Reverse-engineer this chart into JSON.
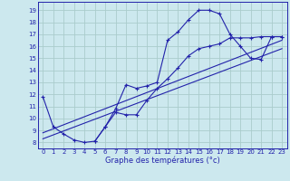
{
  "xlabel": "Graphe des températures (°c)",
  "background_color": "#cce8ee",
  "grid_color": "#aacccc",
  "line_color": "#2222aa",
  "x_ticks": [
    0,
    1,
    2,
    3,
    4,
    5,
    6,
    7,
    8,
    9,
    10,
    11,
    12,
    13,
    14,
    15,
    16,
    17,
    18,
    19,
    20,
    21,
    22,
    23
  ],
  "y_ticks": [
    8,
    9,
    10,
    11,
    12,
    13,
    14,
    15,
    16,
    17,
    18,
    19
  ],
  "ylim": [
    7.5,
    19.7
  ],
  "xlim": [
    -0.5,
    23.5
  ],
  "curve1_x": [
    0,
    1,
    2,
    3,
    4,
    5,
    6,
    7,
    8,
    9,
    10,
    11,
    12,
    13,
    14,
    15,
    16,
    17,
    18,
    19,
    20,
    21,
    22,
    23
  ],
  "curve1_y": [
    11.8,
    9.3,
    8.7,
    8.2,
    8.0,
    8.1,
    9.3,
    10.8,
    12.8,
    12.5,
    12.7,
    13.0,
    16.5,
    17.2,
    18.2,
    19.0,
    19.0,
    18.7,
    17.0,
    16.0,
    15.0,
    14.9,
    16.8,
    16.8
  ],
  "curve2_x": [
    5,
    6,
    7,
    8,
    9,
    10,
    11,
    12,
    13,
    14,
    15,
    16,
    17,
    18,
    19,
    20,
    21,
    22,
    23
  ],
  "curve2_y": [
    8.1,
    9.3,
    10.5,
    10.3,
    10.3,
    11.5,
    12.5,
    13.3,
    14.2,
    15.2,
    15.8,
    16.0,
    16.2,
    16.7,
    16.7,
    16.7,
    16.8,
    16.8,
    16.8
  ],
  "line1_x": [
    0,
    23
  ],
  "line1_y": [
    8.8,
    16.5
  ],
  "line2_x": [
    0,
    23
  ],
  "line2_y": [
    8.3,
    15.8
  ]
}
